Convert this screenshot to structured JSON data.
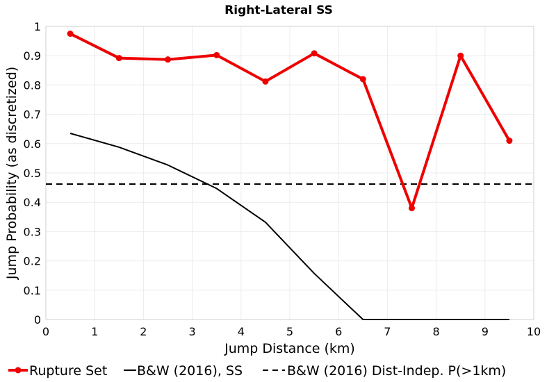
{
  "chart_data": {
    "type": "line",
    "title": "Right-Lateral SS",
    "xlabel": "Jump Distance (km)",
    "ylabel": "Jump Probability (as discretized)",
    "xlim": [
      0,
      10
    ],
    "ylim": [
      0,
      1
    ],
    "xticks": [
      "0",
      "1",
      "2",
      "3",
      "4",
      "5",
      "6",
      "7",
      "8",
      "9",
      "10"
    ],
    "yticks": [
      "0",
      "0.1",
      "0.2",
      "0.3",
      "0.4",
      "0.5",
      "0.6",
      "0.7",
      "0.8",
      "0.9",
      "1"
    ],
    "grid": true,
    "legend_position": "bottom",
    "series": [
      {
        "name": "Rupture Set",
        "color": "#ee0000",
        "style": "solid-markers",
        "x": [
          0.5,
          1.5,
          2.5,
          3.5,
          4.5,
          5.5,
          6.5,
          7.5,
          8.5,
          9.5
        ],
        "y": [
          0.975,
          0.892,
          0.887,
          0.902,
          0.812,
          0.908,
          0.82,
          0.38,
          0.9,
          0.61
        ]
      },
      {
        "name": "B&W (2016), SS",
        "color": "#000000",
        "style": "solid",
        "x": [
          0.5,
          1.5,
          2.5,
          3.5,
          4.5,
          5.5,
          6.5,
          7.5,
          8.5,
          9.5
        ],
        "y": [
          0.635,
          0.588,
          0.527,
          0.447,
          0.332,
          0.157,
          0.0,
          0.0,
          0.0,
          0.0
        ]
      },
      {
        "name": "B&W (2016) Dist-Indep. P(>1km)",
        "color": "#000000",
        "style": "dashed",
        "x": [
          0,
          10
        ],
        "y": [
          0.462,
          0.462
        ]
      }
    ]
  }
}
